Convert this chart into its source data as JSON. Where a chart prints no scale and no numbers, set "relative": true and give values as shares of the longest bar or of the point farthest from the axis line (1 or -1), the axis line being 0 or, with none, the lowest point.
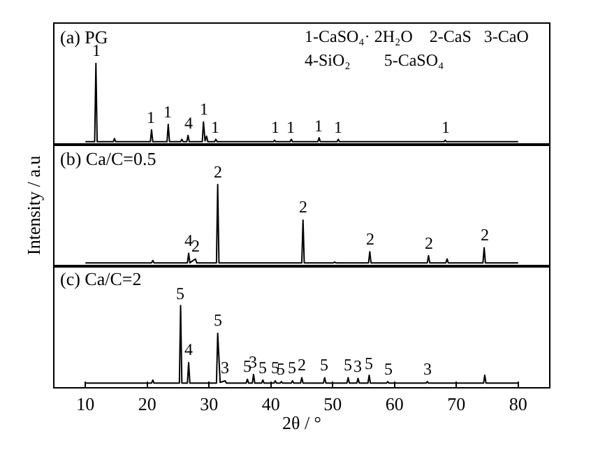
{
  "chart_data": [
    {
      "type": "line",
      "title": "(a) PG",
      "relative": true,
      "xlim": [
        5,
        85
      ],
      "tick_labels": false,
      "annotations": [
        "1-CaSO₄· 2H₂O    2-CaS   3-CaO",
        "4-SiO₂        5-CaSO₄",
        {
          "text": "1",
          "x": 11.7,
          "y": 1.0
        },
        {
          "text": "1",
          "x": 20.7,
          "y": 0.16
        },
        {
          "text": "1",
          "x": 23.4,
          "y": 0.23
        },
        {
          "text": "4",
          "x": 26.6,
          "y": 0.09
        },
        {
          "text": "1",
          "x": 29.1,
          "y": 0.26
        },
        {
          "text": "1",
          "x": 31.1,
          "y": 0.04
        },
        {
          "text": "1",
          "x": 40.6,
          "y": 0.03
        },
        {
          "text": "1",
          "x": 43.3,
          "y": 0.04
        },
        {
          "text": "1",
          "x": 47.8,
          "y": 0.06
        },
        {
          "text": "1",
          "x": 50.9,
          "y": 0.04
        },
        {
          "text": "1",
          "x": 68.2,
          "y": 0.03
        }
      ],
      "series": [
        {
          "color": "#000000",
          "x": [
            10,
            11.5,
            11.7,
            11.9,
            14.5,
            14.7,
            14.9,
            20.5,
            20.7,
            20.9,
            23.2,
            23.4,
            23.6,
            25.4,
            25.6,
            25.8,
            26.4,
            26.6,
            26.8,
            28.9,
            29.1,
            29.35,
            29.6,
            29.8,
            30.9,
            31.1,
            31.3,
            40.4,
            40.6,
            40.8,
            43.1,
            43.3,
            43.5,
            47.6,
            47.8,
            48.0,
            50.7,
            50.9,
            51.1,
            68.0,
            68.2,
            68.4,
            80
          ],
          "values": [
            0.01,
            0.01,
            1.0,
            0.01,
            0.01,
            0.05,
            0.01,
            0.01,
            0.16,
            0.01,
            0.01,
            0.23,
            0.01,
            0.01,
            0.04,
            0.01,
            0.01,
            0.09,
            0.01,
            0.01,
            0.26,
            0.02,
            0.08,
            0.01,
            0.01,
            0.04,
            0.01,
            0.01,
            0.03,
            0.01,
            0.01,
            0.04,
            0.01,
            0.01,
            0.06,
            0.01,
            0.01,
            0.04,
            0.01,
            0.01,
            0.03,
            0.01,
            0.01
          ]
        }
      ]
    },
    {
      "type": "line",
      "title": "(b) Ca/C=0.5",
      "ylabel": "Intensity / a.u",
      "relative": true,
      "xlim": [
        5,
        85
      ],
      "tick_labels": false,
      "annotations": [
        {
          "text": "4",
          "x": 26.7,
          "y": 0.13
        },
        {
          "text": "2",
          "x": 27.8,
          "y": 0.06
        },
        {
          "text": "2",
          "x": 31.4,
          "y": 1.0
        },
        {
          "text": "2",
          "x": 45.2,
          "y": 0.55
        },
        {
          "text": "2",
          "x": 56.0,
          "y": 0.15
        },
        {
          "text": "2",
          "x": 65.5,
          "y": 0.1
        },
        {
          "text": "2",
          "x": 74.5,
          "y": 0.2
        }
      ],
      "series": [
        {
          "color": "#000000",
          "x": [
            10,
            20.7,
            20.9,
            21.1,
            26.5,
            26.7,
            26.9,
            27.8,
            28.0,
            31.2,
            31.4,
            31.6,
            45.0,
            45.2,
            45.4,
            50.1,
            50.3,
            50.5,
            55.8,
            56.0,
            56.2,
            65.3,
            65.5,
            65.7,
            68.3,
            68.5,
            68.7,
            74.3,
            74.5,
            74.7,
            80
          ],
          "values": [
            0.01,
            0.01,
            0.04,
            0.01,
            0.01,
            0.13,
            0.01,
            0.06,
            0.01,
            0.01,
            1.0,
            0.01,
            0.01,
            0.55,
            0.01,
            0.01,
            0.02,
            0.01,
            0.01,
            0.15,
            0.01,
            0.01,
            0.1,
            0.01,
            0.01,
            0.06,
            0.01,
            0.01,
            0.2,
            0.01,
            0.01
          ]
        }
      ]
    },
    {
      "type": "line",
      "title": "(c) Ca/C=2",
      "xlabel": "2θ / °",
      "relative": true,
      "xlim": [
        5,
        85
      ],
      "xticks": [
        10,
        20,
        30,
        40,
        50,
        60,
        70,
        80
      ],
      "tick_labels": "x",
      "annotations": [
        {
          "text": "5",
          "x": 25.4,
          "y": 1.0
        },
        {
          "text": "4",
          "x": 26.7,
          "y": 0.28
        },
        {
          "text": "5",
          "x": 31.4,
          "y": 0.65
        },
        {
          "text": "3",
          "x": 32.6,
          "y": 0.05
        },
        {
          "text": "5",
          "x": 36.2,
          "y": 0.07
        },
        {
          "text": "3",
          "x": 37.2,
          "y": 0.13
        },
        {
          "text": "5",
          "x": 38.7,
          "y": 0.06
        },
        {
          "text": "5",
          "x": 40.7,
          "y": 0.05
        },
        {
          "text": "5",
          "x": 41.7,
          "y": 0.04
        },
        {
          "text": "5",
          "x": 43.5,
          "y": 0.05
        },
        {
          "text": "2",
          "x": 45.0,
          "y": 0.09
        },
        {
          "text": "5",
          "x": 48.7,
          "y": 0.09
        },
        {
          "text": "5",
          "x": 52.5,
          "y": 0.09
        },
        {
          "text": "3",
          "x": 54.1,
          "y": 0.08
        },
        {
          "text": "5",
          "x": 55.9,
          "y": 0.12
        },
        {
          "text": "5",
          "x": 58.9,
          "y": 0.04
        },
        {
          "text": "3",
          "x": 65.3,
          "y": 0.04
        }
      ],
      "series": [
        {
          "color": "#000000",
          "x": [
            10,
            20.7,
            20.9,
            21.1,
            25.2,
            25.4,
            25.6,
            26.5,
            26.7,
            26.9,
            31.2,
            31.4,
            31.8,
            32.6,
            32.8,
            36.0,
            36.2,
            36.4,
            37.0,
            37.2,
            37.4,
            38.5,
            38.7,
            38.9,
            40.5,
            40.7,
            40.9,
            41.5,
            41.7,
            41.9,
            43.3,
            43.5,
            43.7,
            44.8,
            45.0,
            45.2,
            48.5,
            48.7,
            48.9,
            52.3,
            52.5,
            52.7,
            53.9,
            54.1,
            54.3,
            55.7,
            55.9,
            56.1,
            58.7,
            58.9,
            59.1,
            65.1,
            65.3,
            65.5,
            74.4,
            74.6,
            74.8,
            80
          ],
          "values": [
            0.02,
            0.02,
            0.06,
            0.02,
            0.02,
            1.0,
            0.02,
            0.02,
            0.28,
            0.02,
            0.02,
            0.65,
            0.03,
            0.05,
            0.02,
            0.02,
            0.07,
            0.02,
            0.02,
            0.13,
            0.02,
            0.02,
            0.06,
            0.02,
            0.02,
            0.05,
            0.02,
            0.02,
            0.04,
            0.02,
            0.02,
            0.05,
            0.02,
            0.02,
            0.09,
            0.02,
            0.02,
            0.09,
            0.02,
            0.02,
            0.09,
            0.02,
            0.02,
            0.08,
            0.02,
            0.02,
            0.12,
            0.02,
            0.02,
            0.04,
            0.02,
            0.02,
            0.04,
            0.02,
            0.02,
            0.12,
            0.02,
            0.02
          ]
        }
      ]
    }
  ]
}
